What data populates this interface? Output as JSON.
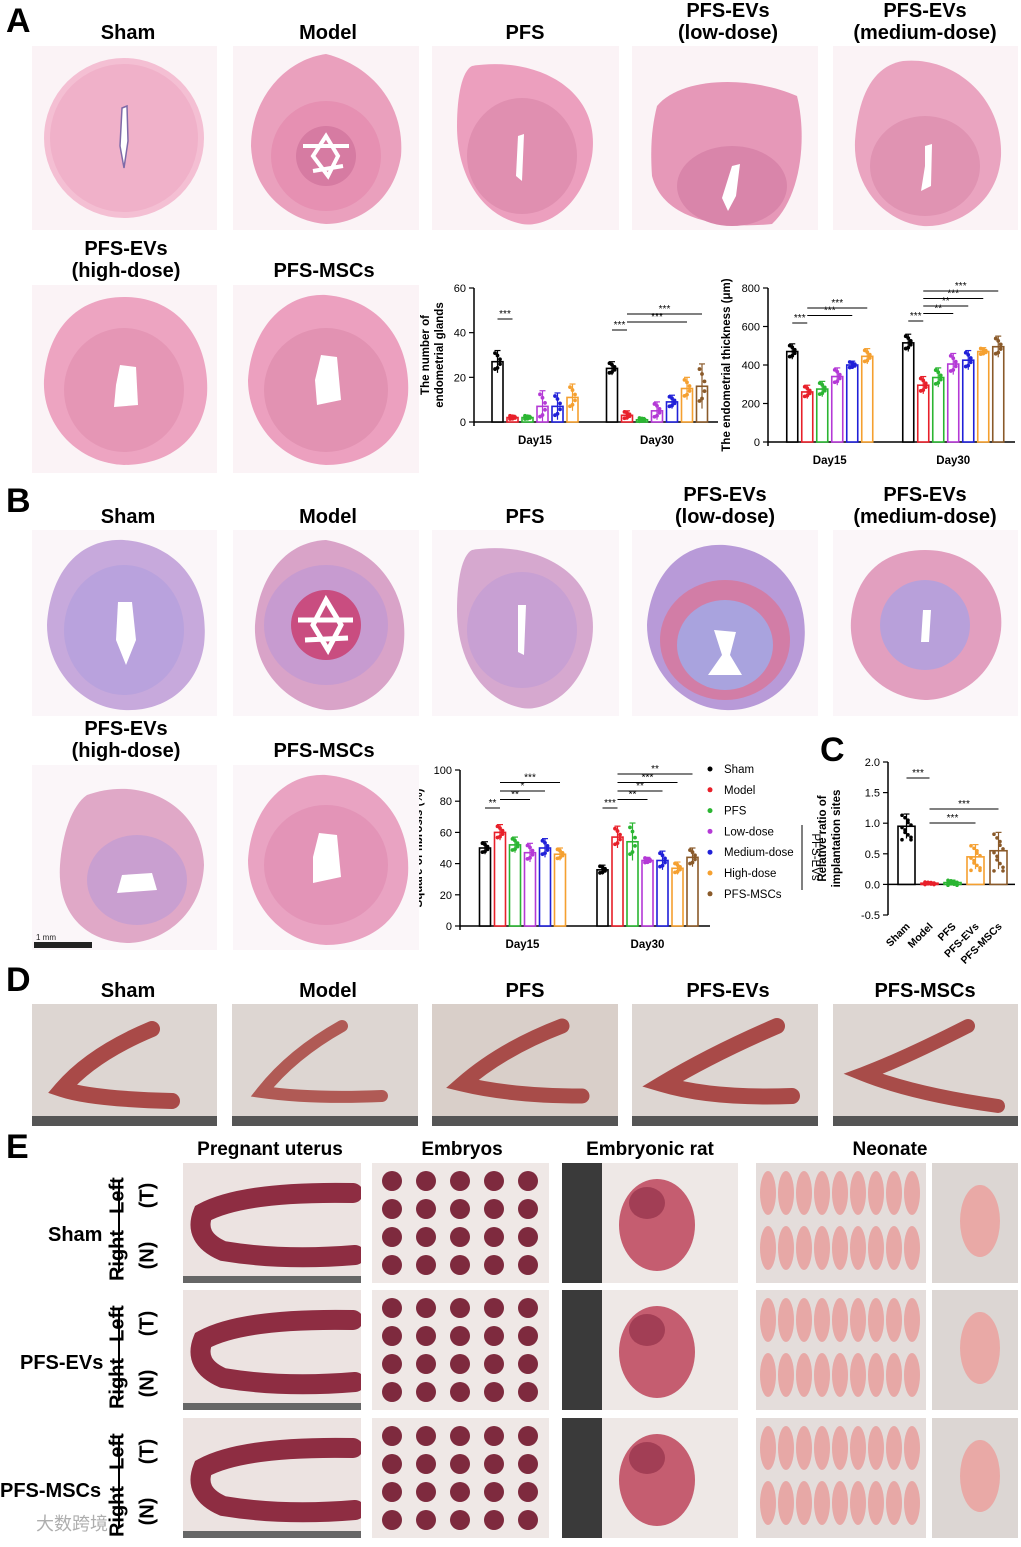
{
  "panel_labels": {
    "A": "A",
    "B": "B",
    "C": "C",
    "D": "D",
    "E": "E"
  },
  "histology_groups": [
    "Sham",
    "Model",
    "PFS",
    "PFS-EVs\n(low-dose)",
    "PFS-EVs\n(medium-dose)",
    "PFS-EVs\n(high-dose)",
    "PFS-MSCs"
  ],
  "panel_a": {
    "headers": [
      "Sham",
      "Model",
      "PFS",
      "PFS-EVs",
      "(low-dose)",
      "PFS-EVs",
      "(medium-dose)",
      "PFS-EVs",
      "(high-dose)",
      "PFS-MSCs"
    ]
  },
  "panel_b": {
    "headers": [
      "Sham",
      "Model",
      "PFS",
      "PFS-EVs",
      "(low-dose)",
      "PFS-EVs",
      "(medium-dose)",
      "PFS-EVs",
      "(high-dose)",
      "PFS-MSCs"
    ],
    "scale_bar": "1 mm"
  },
  "panel_d": {
    "headers": [
      "Sham",
      "Model",
      "PFS",
      "PFS-EVs",
      "PFS-MSCs"
    ]
  },
  "panel_e": {
    "col_headers": [
      "Pregnant uterus",
      "Embryos",
      "Embryonic rat",
      "Neonate"
    ],
    "rows": [
      "Sham",
      "PFS-EVs",
      "PFS-MSCs"
    ],
    "side_labels": {
      "left": "Left",
      "t": "(T)",
      "right": "Right",
      "n": "(N)"
    }
  },
  "watermark": "大数跨境",
  "colors": {
    "Sham": "#000000",
    "Model": "#e8202a",
    "PFS": "#2bb532",
    "Low-dose": "#b439d6",
    "Medium-dose": "#2020d8",
    "High-dose": "#f5a030",
    "PFS-MSCs": "#8a5a2a",
    "he_stain": "#e58fb5",
    "masson_stain": "#b59ad9"
  },
  "chart_data": [
    {
      "id": "glands",
      "type": "bar",
      "title": "",
      "ylabel": "The number of\nendometrial glands",
      "xlabel": "",
      "categories": [
        "Day15",
        "Day30"
      ],
      "ylim": [
        0,
        60
      ],
      "yticks": [
        0,
        20,
        40,
        60
      ],
      "series": [
        {
          "name": "Sham",
          "values": [
            27,
            24
          ],
          "err": [
            5,
            3
          ]
        },
        {
          "name": "Model",
          "values": [
            2,
            3
          ],
          "err": [
            1,
            2
          ]
        },
        {
          "name": "PFS",
          "values": [
            2,
            1
          ],
          "err": [
            1,
            1
          ]
        },
        {
          "name": "Low-dose",
          "values": [
            7,
            5
          ],
          "err": [
            7,
            4
          ]
        },
        {
          "name": "Medium-dose",
          "values": [
            7,
            9
          ],
          "err": [
            6,
            3
          ]
        },
        {
          "name": "High-dose",
          "values": [
            11,
            15
          ],
          "err": [
            6,
            5
          ]
        },
        {
          "name": "PFS-MSCs",
          "values": [
            null,
            16
          ],
          "err": [
            null,
            10
          ]
        }
      ],
      "significance": [
        {
          "group": 0,
          "from": 0,
          "to": 1,
          "label": "***"
        },
        {
          "group": 1,
          "from": 0,
          "to": 1,
          "label": "***"
        },
        {
          "group": 1,
          "from": 1,
          "to": 5,
          "label": "***"
        },
        {
          "group": 1,
          "from": 1,
          "to": 6,
          "label": "***"
        }
      ]
    },
    {
      "id": "thickness",
      "type": "bar",
      "title": "",
      "ylabel": "The endometrial thickness (μm)",
      "xlabel": "",
      "categories": [
        "Day15",
        "Day30"
      ],
      "ylim": [
        0,
        800
      ],
      "yticks": [
        0,
        200,
        400,
        600,
        800
      ],
      "series": [
        {
          "name": "Sham",
          "values": [
            470,
            515
          ],
          "err": [
            40,
            45
          ]
        },
        {
          "name": "Model",
          "values": [
            260,
            295
          ],
          "err": [
            35,
            45
          ]
        },
        {
          "name": "PFS",
          "values": [
            275,
            335
          ],
          "err": [
            40,
            50
          ]
        },
        {
          "name": "Low-dose",
          "values": [
            340,
            405
          ],
          "err": [
            45,
            55
          ]
        },
        {
          "name": "Medium-dose",
          "values": [
            400,
            425
          ],
          "err": [
            20,
            50
          ]
        },
        {
          "name": "High-dose",
          "values": [
            445,
            470
          ],
          "err": [
            40,
            20
          ]
        },
        {
          "name": "PFS-MSCs",
          "values": [
            null,
            495
          ],
          "err": [
            null,
            55
          ]
        }
      ],
      "significance": [
        {
          "group": 0,
          "from": 0,
          "to": 1,
          "label": "***"
        },
        {
          "group": 0,
          "from": 1,
          "to": 4,
          "label": "***"
        },
        {
          "group": 0,
          "from": 1,
          "to": 5,
          "label": "***"
        },
        {
          "group": 1,
          "from": 0,
          "to": 1,
          "label": "***"
        },
        {
          "group": 1,
          "from": 1,
          "to": 3,
          "label": "**"
        },
        {
          "group": 1,
          "from": 1,
          "to": 4,
          "label": "**"
        },
        {
          "group": 1,
          "from": 1,
          "to": 5,
          "label": "***"
        },
        {
          "group": 1,
          "from": 1,
          "to": 6,
          "label": "***"
        }
      ]
    },
    {
      "id": "fibrosis",
      "type": "bar",
      "title": "",
      "ylabel": "Square of fibrosis (%)",
      "xlabel": "",
      "categories": [
        "Day15",
        "Day30"
      ],
      "ylim": [
        0,
        100
      ],
      "yticks": [
        0,
        20,
        40,
        60,
        80,
        100
      ],
      "series": [
        {
          "name": "Sham",
          "values": [
            50,
            36
          ],
          "err": [
            4,
            3
          ]
        },
        {
          "name": "Model",
          "values": [
            60,
            57
          ],
          "err": [
            5,
            7
          ]
        },
        {
          "name": "PFS",
          "values": [
            52,
            54
          ],
          "err": [
            5,
            12
          ]
        },
        {
          "name": "Low-dose",
          "values": [
            47,
            42
          ],
          "err": [
            6,
            2
          ]
        },
        {
          "name": "Medium-dose",
          "values": [
            50,
            42
          ],
          "err": [
            6,
            6
          ]
        },
        {
          "name": "High-dose",
          "values": [
            46,
            37
          ],
          "err": [
            4,
            4
          ]
        },
        {
          "name": "PFS-MSCs",
          "values": [
            null,
            44
          ],
          "err": [
            null,
            6
          ]
        }
      ],
      "legend": [
        "Sham",
        "Model",
        "PFS",
        "Low-dose",
        "Medium-dose",
        "High-dose",
        "PFS-MSCs"
      ],
      "legend_bracket_label": "PFS-EVs",
      "significance": [
        {
          "group": 0,
          "from": 0,
          "to": 1,
          "label": "**"
        },
        {
          "group": 0,
          "from": 1,
          "to": 3,
          "label": "**"
        },
        {
          "group": 0,
          "from": 1,
          "to": 4,
          "label": "*"
        },
        {
          "group": 0,
          "from": 1,
          "to": 5,
          "label": "***"
        },
        {
          "group": 1,
          "from": 0,
          "to": 1,
          "label": "***"
        },
        {
          "group": 1,
          "from": 1,
          "to": 3,
          "label": "**"
        },
        {
          "group": 1,
          "from": 1,
          "to": 4,
          "label": "**"
        },
        {
          "group": 1,
          "from": 1,
          "to": 5,
          "label": "***"
        },
        {
          "group": 1,
          "from": 1,
          "to": 6,
          "label": "**"
        }
      ]
    },
    {
      "id": "implantation",
      "type": "bar",
      "title": "",
      "ylabel": "Relative ratio of\nimplantation sites",
      "xlabel": "",
      "categories": [
        "Sham",
        "Model",
        "PFS",
        "PFS-EVs",
        "PFS-MSCs"
      ],
      "ylim": [
        -0.5,
        2.0
      ],
      "yticks": [
        -0.5,
        0.0,
        0.5,
        1.0,
        1.5,
        2.0
      ],
      "values": [
        0.95,
        0.02,
        0.03,
        0.45,
        0.55
      ],
      "err": [
        0.2,
        0.02,
        0.04,
        0.2,
        0.3
      ],
      "bar_colors": [
        "#000000",
        "#e8202a",
        "#2bb532",
        "#f5a030",
        "#8a5a2a"
      ],
      "significance": [
        {
          "from": 0,
          "to": 1,
          "label": "***"
        },
        {
          "from": 1,
          "to": 3,
          "label": "***"
        },
        {
          "from": 1,
          "to": 4,
          "label": "***"
        }
      ]
    }
  ]
}
